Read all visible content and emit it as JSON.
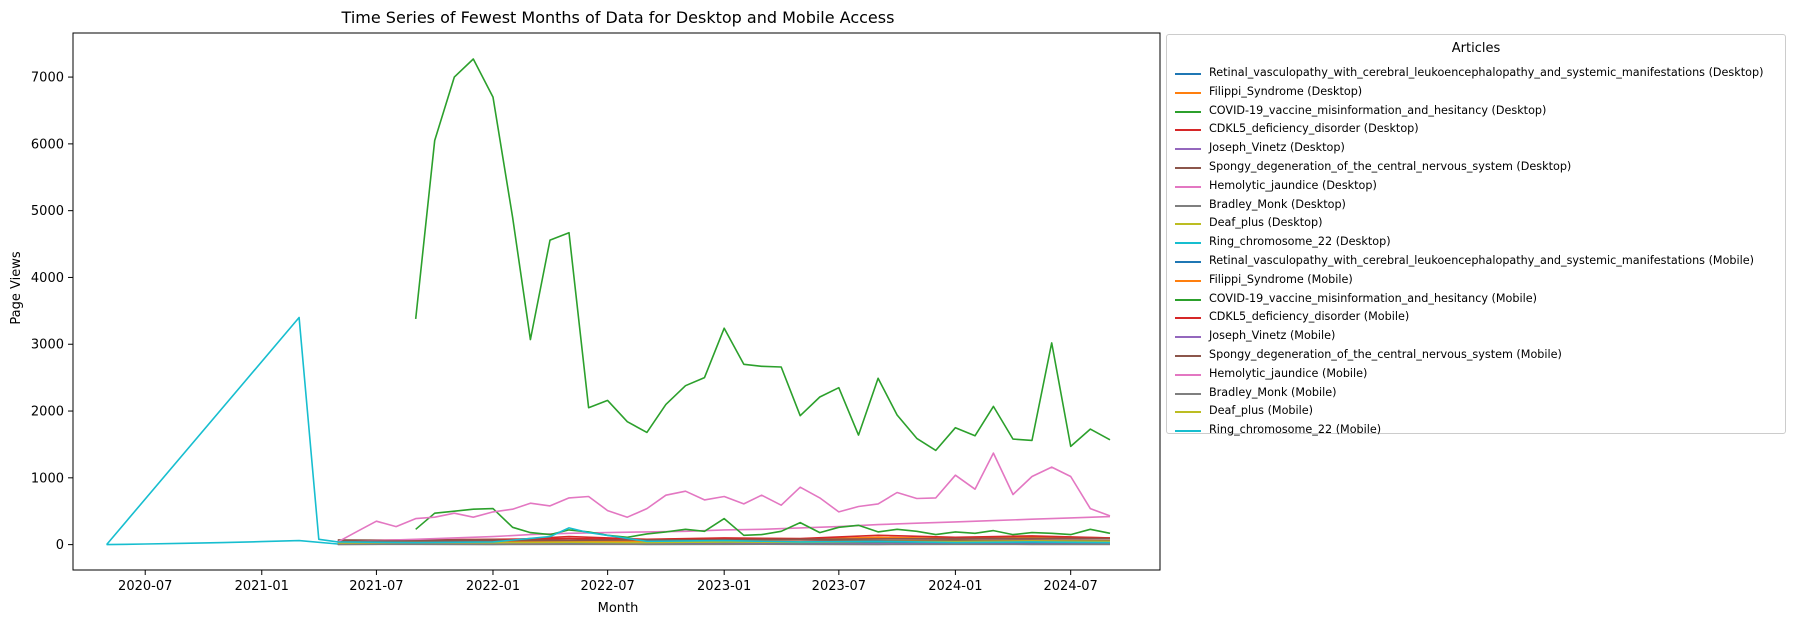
{
  "chart_data": {
    "type": "line",
    "title": "Time Series of Fewest Months of Data for Desktop and Mobile Access",
    "xlabel": "Month",
    "ylabel": "Page Views",
    "xlim": [
      "2020-03-09",
      "2024-11-19"
    ],
    "ylim": [
      -380,
      7660
    ],
    "x_ticks": [
      "2020-07",
      "2021-01",
      "2021-07",
      "2022-01",
      "2022-07",
      "2023-01",
      "2023-07",
      "2024-01",
      "2024-07"
    ],
    "y_ticks": [
      0,
      1000,
      2000,
      3000,
      4000,
      5000,
      6000,
      7000
    ],
    "legend_title": "Articles",
    "legend_position": "outside right",
    "series": [
      {
        "name": "Retinal_vasculopathy_with_cerebral_leukoencephalopathy_and_systemic_manifestations (Desktop)",
        "color": "#1f77b4",
        "x": [
          "2021-05",
          "2021-09",
          "2022-01",
          "2022-05",
          "2022-09",
          "2023-01",
          "2023-05",
          "2023-09",
          "2024-01",
          "2024-05",
          "2024-09"
        ],
        "y": [
          10,
          15,
          12,
          18,
          14,
          20,
          16,
          22,
          18,
          20,
          15
        ]
      },
      {
        "name": "Filippi_Syndrome (Desktop)",
        "color": "#ff7f0e",
        "x": [
          "2021-05",
          "2021-09",
          "2022-01",
          "2022-05",
          "2022-09",
          "2023-01",
          "2023-05",
          "2023-09",
          "2024-01",
          "2024-05",
          "2024-09"
        ],
        "y": [
          20,
          25,
          22,
          30,
          25,
          40,
          35,
          45,
          40,
          50,
          45
        ]
      },
      {
        "name": "COVID-19_vaccine_misinformation_and_hesitancy (Desktop)",
        "color": "#2ca02c",
        "x": [
          "2021-09",
          "2021-10",
          "2021-11",
          "2021-12",
          "2022-01",
          "2022-02",
          "2022-03",
          "2022-04",
          "2022-05",
          "2022-06",
          "2022-07",
          "2022-08",
          "2022-09",
          "2022-10",
          "2022-11",
          "2022-12",
          "2023-01",
          "2023-02",
          "2023-03",
          "2023-04",
          "2023-05",
          "2023-06",
          "2023-07",
          "2023-08",
          "2023-09",
          "2023-10",
          "2023-11",
          "2023-12",
          "2024-01",
          "2024-02",
          "2024-03",
          "2024-04",
          "2024-05",
          "2024-06",
          "2024-07",
          "2024-08",
          "2024-09"
        ],
        "y": [
          3380,
          6050,
          7000,
          7270,
          6700,
          4900,
          3070,
          4560,
          4670,
          2050,
          2160,
          1840,
          1680,
          2100,
          2380,
          2500,
          3240,
          2700,
          2670,
          2660,
          1930,
          2210,
          2350,
          1640,
          2490,
          1940,
          1590,
          1410,
          1750,
          1630,
          2070,
          1580,
          1560,
          3020,
          1470,
          1730,
          1570
        ]
      },
      {
        "name": "CDKL5_deficiency_disorder (Desktop)",
        "color": "#d62728",
        "x": [
          "2021-05",
          "2021-09",
          "2022-01",
          "2022-05",
          "2022-09",
          "2023-01",
          "2023-05",
          "2023-09",
          "2024-01",
          "2024-05",
          "2024-09"
        ],
        "y": [
          60,
          70,
          80,
          90,
          75,
          95,
          85,
          100,
          90,
          110,
          95
        ]
      },
      {
        "name": "Joseph_Vinetz (Desktop)",
        "color": "#9467bd",
        "x": [
          "2021-05",
          "2021-09",
          "2022-01",
          "2022-05",
          "2022-09",
          "2023-01",
          "2023-05",
          "2023-09",
          "2024-01",
          "2024-05",
          "2024-09"
        ],
        "y": [
          15,
          12,
          18,
          14,
          16,
          12,
          15,
          13,
          17,
          14,
          12
        ]
      },
      {
        "name": "Spongy_degeneration_of_the_central_nervous_system (Desktop)",
        "color": "#8c564b",
        "x": [
          "2021-05",
          "2021-09",
          "2022-01",
          "2022-05",
          "2022-09",
          "2023-01",
          "2023-05",
          "2023-09",
          "2024-01",
          "2024-05",
          "2024-09"
        ],
        "y": [
          70,
          65,
          75,
          60,
          70,
          65,
          70,
          60,
          65,
          70,
          60
        ]
      },
      {
        "name": "Hemolytic_jaundice (Desktop)",
        "color": "#e377c2",
        "x": [
          "2021-05",
          "2021-07",
          "2021-09",
          "2021-11",
          "2022-01",
          "2022-03",
          "2022-05",
          "2022-07",
          "2022-09",
          "2022-11",
          "2023-01",
          "2023-03",
          "2023-05",
          "2023-07",
          "2023-09",
          "2023-11",
          "2024-01",
          "2024-03",
          "2024-05",
          "2024-07",
          "2024-09"
        ],
        "y": [
          40,
          60,
          80,
          100,
          120,
          150,
          170,
          180,
          190,
          200,
          220,
          230,
          250,
          270,
          300,
          320,
          340,
          360,
          380,
          400,
          420
        ]
      },
      {
        "name": "Bradley_Monk (Desktop)",
        "color": "#7f7f7f",
        "x": [
          "2021-05",
          "2021-09",
          "2022-01",
          "2022-05",
          "2022-09",
          "2023-01",
          "2023-05",
          "2023-09",
          "2024-01",
          "2024-05",
          "2024-09"
        ],
        "y": [
          5,
          6,
          5,
          7,
          6,
          5,
          6,
          5,
          7,
          6,
          5
        ]
      },
      {
        "name": "Deaf_plus (Desktop)",
        "color": "#bcbd22",
        "x": [
          "2021-05",
          "2021-09",
          "2022-01",
          "2022-05",
          "2022-09",
          "2023-01",
          "2023-05",
          "2023-09",
          "2024-01",
          "2024-05",
          "2024-09"
        ],
        "y": [
          30,
          35,
          30,
          40,
          35,
          45,
          40,
          50,
          45,
          55,
          50
        ]
      },
      {
        "name": "Ring_chromosome_22 (Desktop)",
        "color": "#17becf",
        "x": [
          "2020-05",
          "2020-07",
          "2020-09",
          "2020-11",
          "2021-01",
          "2021-03",
          "2021-05",
          "2021-09",
          "2022-01",
          "2022-05",
          "2022-09",
          "2023-01",
          "2023-05",
          "2023-09",
          "2024-01",
          "2024-05",
          "2024-09"
        ],
        "y": [
          0,
          10,
          20,
          30,
          45,
          60,
          10,
          12,
          10,
          14,
          12,
          15,
          12,
          14,
          12,
          10,
          12
        ]
      },
      {
        "name": "Retinal_vasculopathy_with_cerebral_leukoencephalopathy_and_systemic_manifestations (Mobile)",
        "color": "#1f77b4",
        "x": [
          "2021-05",
          "2021-09",
          "2022-01",
          "2022-05",
          "2022-09",
          "2023-01",
          "2023-05",
          "2023-09",
          "2024-01",
          "2024-05",
          "2024-09"
        ],
        "y": [
          8,
          10,
          9,
          12,
          10,
          14,
          12,
          15,
          13,
          14,
          12
        ]
      },
      {
        "name": "Filippi_Syndrome (Mobile)",
        "color": "#ff7f0e",
        "x": [
          "2021-05",
          "2021-09",
          "2022-01",
          "2022-05",
          "2022-09",
          "2023-01",
          "2023-05",
          "2023-09",
          "2024-01",
          "2024-05",
          "2024-09"
        ],
        "y": [
          30,
          40,
          35,
          60,
          45,
          70,
          80,
          110,
          90,
          120,
          100
        ]
      },
      {
        "name": "COVID-19_vaccine_misinformation_and_hesitancy (Mobile)",
        "color": "#2ca02c",
        "x": [
          "2021-09",
          "2021-10",
          "2021-11",
          "2021-12",
          "2022-01",
          "2022-02",
          "2022-03",
          "2022-04",
          "2022-05",
          "2022-06",
          "2022-07",
          "2022-08",
          "2022-09",
          "2022-10",
          "2022-11",
          "2022-12",
          "2023-01",
          "2023-02",
          "2023-03",
          "2023-04",
          "2023-05",
          "2023-06",
          "2023-07",
          "2023-08",
          "2023-09",
          "2023-10",
          "2023-11",
          "2023-12",
          "2024-01",
          "2024-02",
          "2024-03",
          "2024-04",
          "2024-05",
          "2024-06",
          "2024-07",
          "2024-08",
          "2024-09"
        ],
        "y": [
          230,
          470,
          500,
          530,
          540,
          260,
          180,
          150,
          220,
          190,
          140,
          110,
          160,
          190,
          230,
          200,
          390,
          140,
          150,
          200,
          330,
          180,
          260,
          290,
          190,
          230,
          200,
          150,
          190,
          170,
          210,
          150,
          180,
          170,
          150,
          230,
          170
        ]
      },
      {
        "name": "CDKL5_deficiency_disorder (Mobile)",
        "color": "#d62728",
        "x": [
          "2021-05",
          "2021-09",
          "2022-01",
          "2022-05",
          "2022-09",
          "2023-01",
          "2023-05",
          "2023-09",
          "2024-01",
          "2024-05",
          "2024-09"
        ],
        "y": [
          40,
          50,
          60,
          120,
          80,
          100,
          90,
          140,
          110,
          130,
          100
        ]
      },
      {
        "name": "Joseph_Vinetz (Mobile)",
        "color": "#9467bd",
        "x": [
          "2021-05",
          "2021-09",
          "2022-01",
          "2022-05",
          "2022-09",
          "2023-01",
          "2023-05",
          "2023-09",
          "2024-01",
          "2024-05",
          "2024-09"
        ],
        "y": [
          10,
          8,
          12,
          10,
          9,
          11,
          10,
          12,
          9,
          10,
          8
        ]
      },
      {
        "name": "Spongy_degeneration_of_the_central_nervous_system (Mobile)",
        "color": "#8c564b",
        "x": [
          "2021-05",
          "2021-09",
          "2022-01",
          "2022-05",
          "2022-09",
          "2023-01",
          "2023-05",
          "2023-09",
          "2024-01",
          "2024-05",
          "2024-09"
        ],
        "y": [
          50,
          55,
          60,
          65,
          70,
          75,
          80,
          85,
          90,
          95,
          90
        ]
      },
      {
        "name": "Hemolytic_jaundice (Mobile)",
        "color": "#e377c2",
        "x": [
          "2021-05",
          "2021-06",
          "2021-07",
          "2021-08",
          "2021-09",
          "2021-10",
          "2021-11",
          "2021-12",
          "2022-01",
          "2022-02",
          "2022-03",
          "2022-04",
          "2022-05",
          "2022-06",
          "2022-07",
          "2022-08",
          "2022-09",
          "2022-10",
          "2022-11",
          "2022-12",
          "2023-01",
          "2023-02",
          "2023-03",
          "2023-04",
          "2023-05",
          "2023-06",
          "2023-07",
          "2023-08",
          "2023-09",
          "2023-10",
          "2023-11",
          "2023-12",
          "2024-01",
          "2024-02",
          "2024-03",
          "2024-04",
          "2024-05",
          "2024-06",
          "2024-07",
          "2024-08",
          "2024-09"
        ],
        "y": [
          40,
          200,
          350,
          270,
          390,
          410,
          470,
          410,
          490,
          530,
          620,
          580,
          700,
          720,
          510,
          410,
          540,
          740,
          800,
          670,
          720,
          610,
          740,
          590,
          860,
          700,
          490,
          570,
          610,
          780,
          690,
          700,
          1040,
          830,
          1370,
          750,
          1020,
          1160,
          1020,
          540,
          430
        ]
      },
      {
        "name": "Bradley_Monk (Mobile)",
        "color": "#7f7f7f",
        "x": [
          "2021-05",
          "2021-09",
          "2022-01",
          "2022-05",
          "2022-09",
          "2023-01",
          "2023-05",
          "2023-09",
          "2024-01",
          "2024-05",
          "2024-09"
        ],
        "y": [
          4,
          5,
          4,
          5,
          4,
          6,
          5,
          4,
          5,
          4,
          5
        ]
      },
      {
        "name": "Deaf_plus (Mobile)",
        "color": "#bcbd22",
        "x": [
          "2021-05",
          "2021-09",
          "2022-01",
          "2022-05",
          "2022-09",
          "2023-01",
          "2023-05",
          "2023-09",
          "2024-01",
          "2024-05",
          "2024-09"
        ],
        "y": [
          25,
          30,
          28,
          35,
          30,
          40,
          35,
          45,
          40,
          45,
          40
        ]
      },
      {
        "name": "Ring_chromosome_22 (Mobile)",
        "color": "#17becf",
        "x": [
          "2020-05",
          "2021-03",
          "2021-04",
          "2021-05",
          "2021-09",
          "2022-01",
          "2022-04",
          "2022-05",
          "2022-06",
          "2022-09",
          "2023-01",
          "2023-05",
          "2023-09",
          "2024-01",
          "2024-05",
          "2024-09"
        ],
        "y": [
          0,
          3400,
          80,
          40,
          30,
          40,
          120,
          250,
          180,
          50,
          60,
          40,
          50,
          30,
          40,
          30
        ]
      }
    ]
  }
}
